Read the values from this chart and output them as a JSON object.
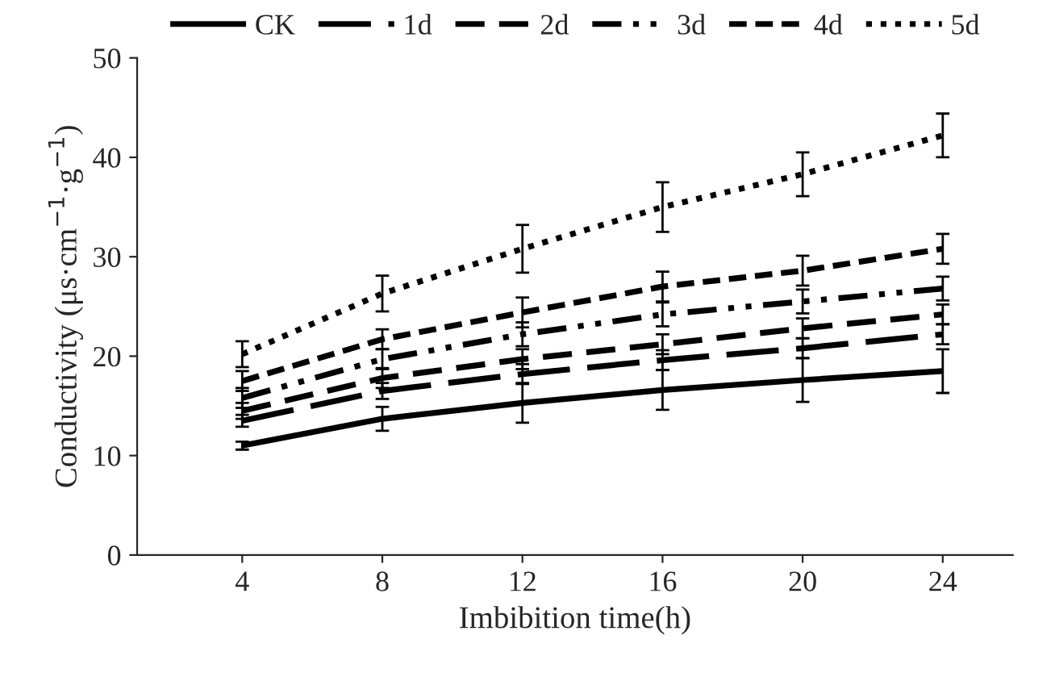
{
  "chart_data": {
    "type": "line",
    "xlabel": "Imbibition time(h)",
    "ylabel": "Conductivity (μs·cm$^{−1}$·g$^{−1}$)",
    "x": [
      4,
      8,
      12,
      16,
      20,
      24
    ],
    "xlim": [
      1,
      26
    ],
    "xticks": [
      4,
      8,
      12,
      16,
      20,
      24
    ],
    "ylim": [
      0,
      50
    ],
    "yticks": [
      0,
      10,
      20,
      30,
      40,
      50
    ],
    "grid": false,
    "legend": "top",
    "marker": "none",
    "series": [
      {
        "name": "CK",
        "color": "#000000",
        "line_style": "solid",
        "values": [
          11,
          13.7,
          15.3,
          16.6,
          17.6,
          18.5
        ],
        "errors": [
          0.4,
          1.2,
          2,
          2,
          2.2,
          2.2
        ]
      },
      {
        "name": "1d",
        "color": "#000000",
        "line_style": "longdash",
        "values": [
          13.5,
          16.5,
          18.2,
          19.6,
          20.8,
          22.2
        ],
        "errors": [
          0.6,
          0.8,
          1,
          1,
          1,
          1
        ]
      },
      {
        "name": "2d",
        "color": "#000000",
        "line_style": "dashed",
        "values": [
          14.5,
          17.8,
          19.7,
          21.2,
          22.8,
          24.2
        ],
        "errors": [
          0.8,
          1,
          1,
          1,
          1,
          1
        ]
      },
      {
        "name": "3d",
        "color": "#000000",
        "line_style": "dashdot",
        "values": [
          15.8,
          19.7,
          22.2,
          24.2,
          25.5,
          26.8
        ],
        "errors": [
          1,
          1,
          1.2,
          1.2,
          1.2,
          1.2
        ]
      },
      {
        "name": "4d",
        "color": "#000000",
        "line_style": "shortdash",
        "values": [
          17.5,
          21.7,
          24.4,
          27,
          28.6,
          30.8
        ],
        "errors": [
          1,
          1,
          1.5,
          1.5,
          1.5,
          1.5
        ]
      },
      {
        "name": "5d",
        "color": "#000000",
        "line_style": "dotted",
        "values": [
          20.2,
          26.3,
          30.8,
          35,
          38.3,
          42.2
        ],
        "errors": [
          1.3,
          1.8,
          2.4,
          2.5,
          2.2,
          2.2
        ]
      }
    ]
  }
}
